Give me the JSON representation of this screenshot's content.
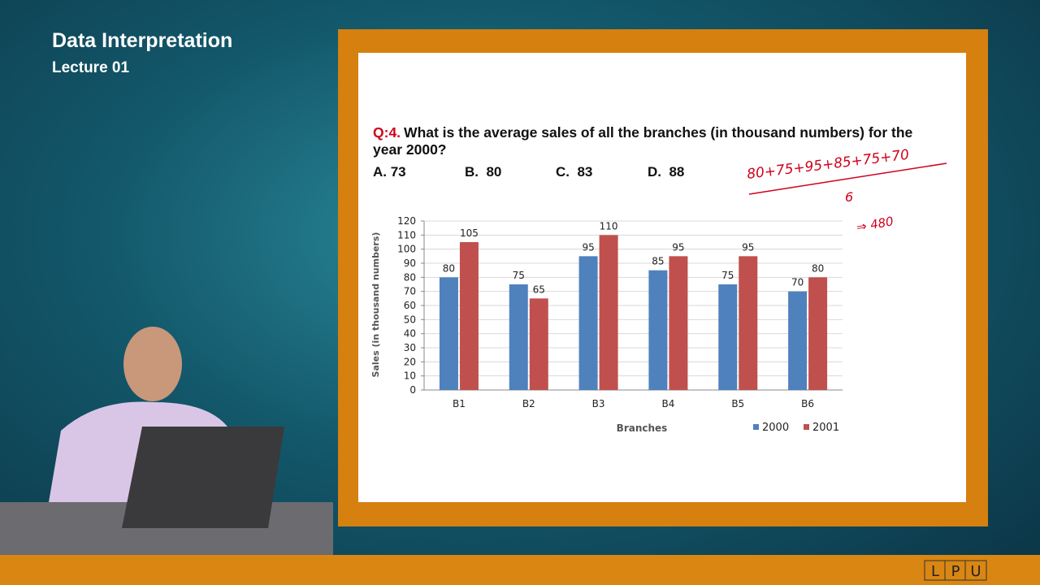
{
  "header": {
    "title": "Data Interpretation",
    "subtitle": "Lecture 01"
  },
  "question": {
    "label": "Q:4.",
    "text": "What is the average sales of all the branches (in thousand numbers) for the year 2000?",
    "options": [
      "A. 73",
      "B.  80",
      "C.  83",
      "D.  88"
    ]
  },
  "notes": {
    "sum": "80+75+95+85+75+70",
    "divisor": "6",
    "result": "⇒ 480"
  },
  "logo": [
    "L",
    "P",
    "U"
  ],
  "chart_data": {
    "type": "bar",
    "categories": [
      "B1",
      "B2",
      "B3",
      "B4",
      "B5",
      "B6"
    ],
    "series": [
      {
        "name": "2000",
        "color": "#4f81bd",
        "values": [
          80,
          75,
          95,
          85,
          75,
          70
        ]
      },
      {
        "name": "2001",
        "color": "#c0504d",
        "values": [
          105,
          65,
          110,
          95,
          95,
          80
        ]
      }
    ],
    "x_label": "Branches",
    "y_label": "Sales (in thousand numbers)",
    "ylim": [
      0,
      120
    ],
    "yticks": [
      0,
      10,
      20,
      30,
      40,
      50,
      60,
      70,
      80,
      90,
      100,
      110,
      120
    ],
    "grid": true,
    "legend": "bottom-right"
  }
}
